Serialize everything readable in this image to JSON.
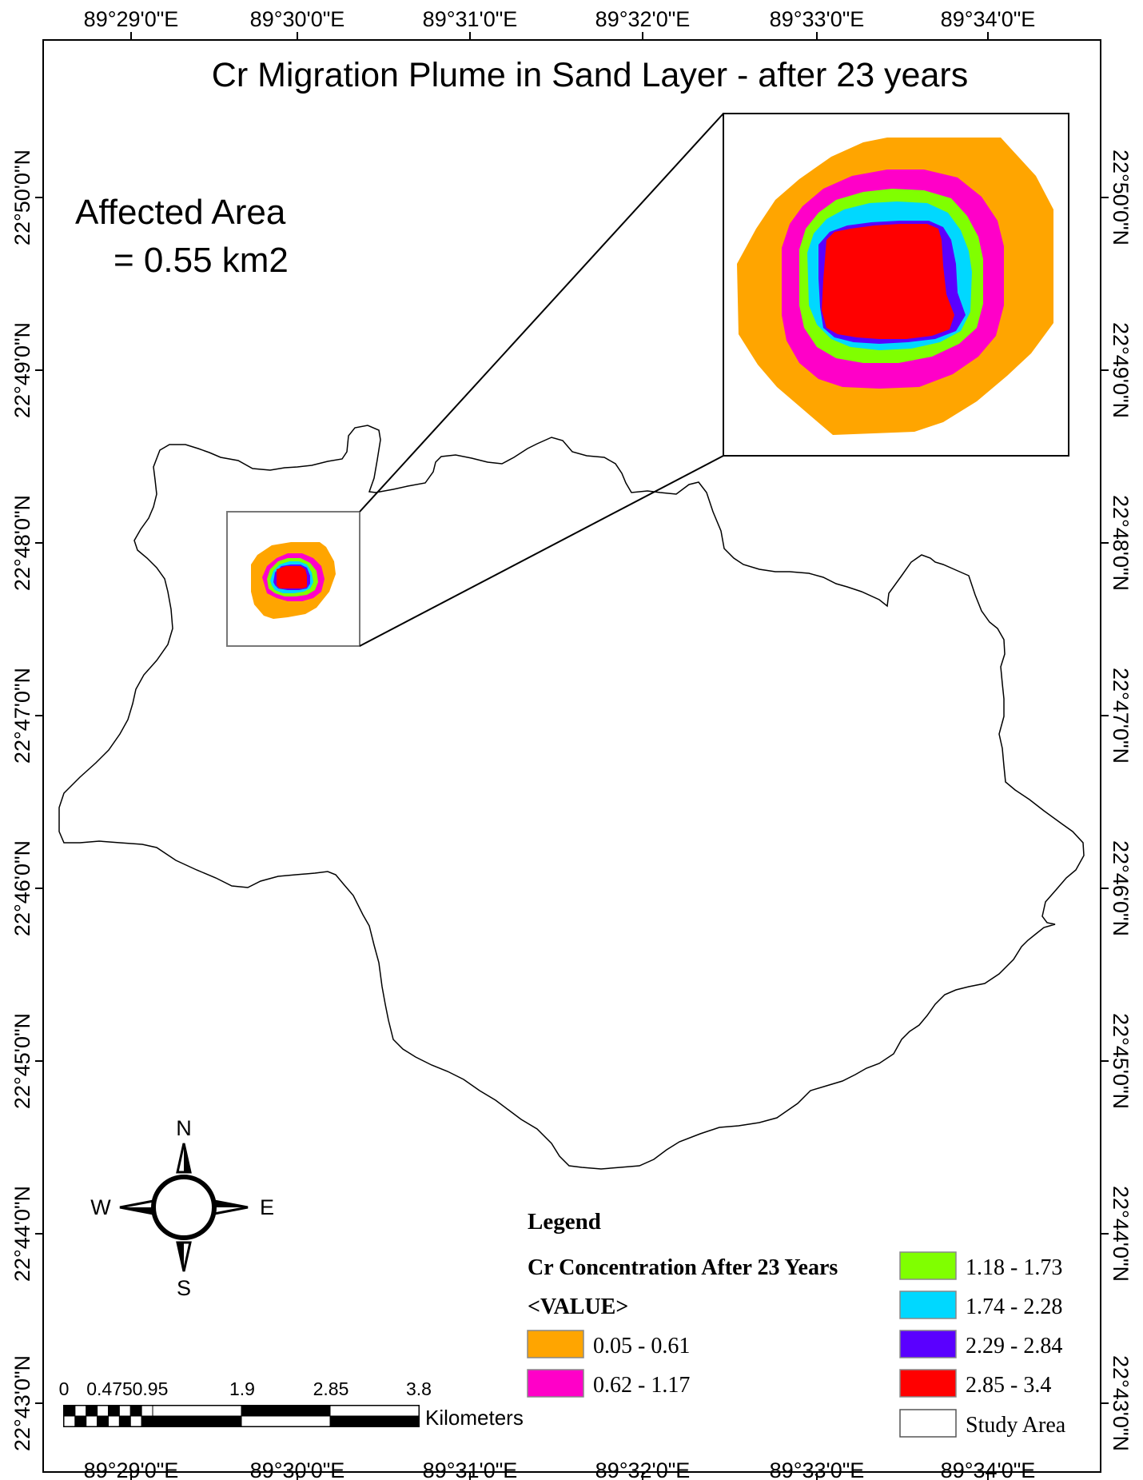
{
  "map": {
    "title": "Cr Migration Plume in Sand Layer - after 23 years",
    "affected_area": {
      "line1": "Affected Area",
      "line2": "= 0.55 km2"
    },
    "longitude_labels": [
      "89°29'0\"E",
      "89°30'0\"E",
      "89°31'0\"E",
      "89°32'0\"E",
      "89°33'0\"E",
      "89°34'0\"E"
    ],
    "latitude_labels": [
      "22°50'0\"N",
      "22°49'0\"N",
      "22°48'0\"N",
      "22°47'0\"N",
      "22°46'0\"N",
      "22°45'0\"N",
      "22°44'0\"N",
      "22°43'0\"N"
    ],
    "north_arrow": {
      "n": "N",
      "s": "S",
      "e": "E",
      "w": "W"
    },
    "scale_bar": {
      "ticks": [
        "0",
        "0.475",
        "0.95",
        "1.9",
        "2.85",
        "3.8"
      ],
      "unit": "Kilometers"
    },
    "legend": {
      "heading": "Legend",
      "layer_name": "Cr Concentration After 23 Years",
      "field": "<VALUE>",
      "classes": [
        {
          "label": "0.05 - 0.61",
          "color": "#ffa500"
        },
        {
          "label": "0.62 - 1.17",
          "color": "#ff00c8"
        },
        {
          "label": "1.18 - 1.73",
          "color": "#80ff00"
        },
        {
          "label": "1.74 - 2.28",
          "color": "#00d8ff"
        },
        {
          "label": "2.29 - 2.84",
          "color": "#5a00ff"
        },
        {
          "label": "2.85 - 3.4",
          "color": "#ff0000"
        }
      ],
      "study_area": {
        "label": "Study Area",
        "color": "#ffffff"
      }
    }
  }
}
